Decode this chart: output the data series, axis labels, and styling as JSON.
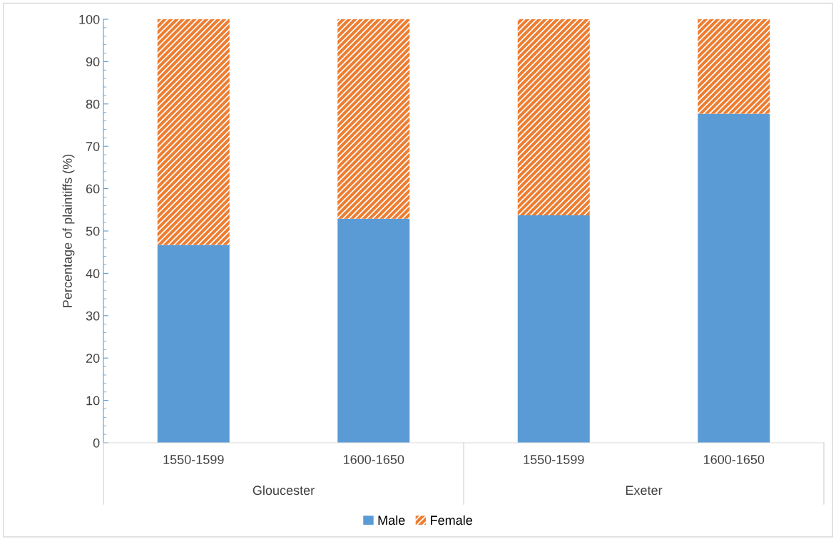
{
  "chart_data": {
    "type": "bar",
    "stacked": true,
    "ylabel": "Percentage of plaintiffs (%)",
    "categories": [
      "1550-1599",
      "1600-1650",
      "1550-1599",
      "1600-1650"
    ],
    "annotations": [
      "Gloucester",
      "Exeter"
    ],
    "series": [
      {
        "name": "Male",
        "color": "#5b9bd5",
        "values": [
          46.7,
          52.9,
          53.7,
          77.7
        ]
      },
      {
        "name": "Female",
        "color": "#ed7d31",
        "values": [
          53.3,
          47.1,
          46.3,
          22.3
        ]
      }
    ],
    "ylim": [
      0,
      100
    ],
    "yticks": [
      0,
      10,
      20,
      30,
      40,
      50,
      60,
      70,
      80,
      90,
      100
    ],
    "grid": false,
    "legend": "bottom"
  }
}
